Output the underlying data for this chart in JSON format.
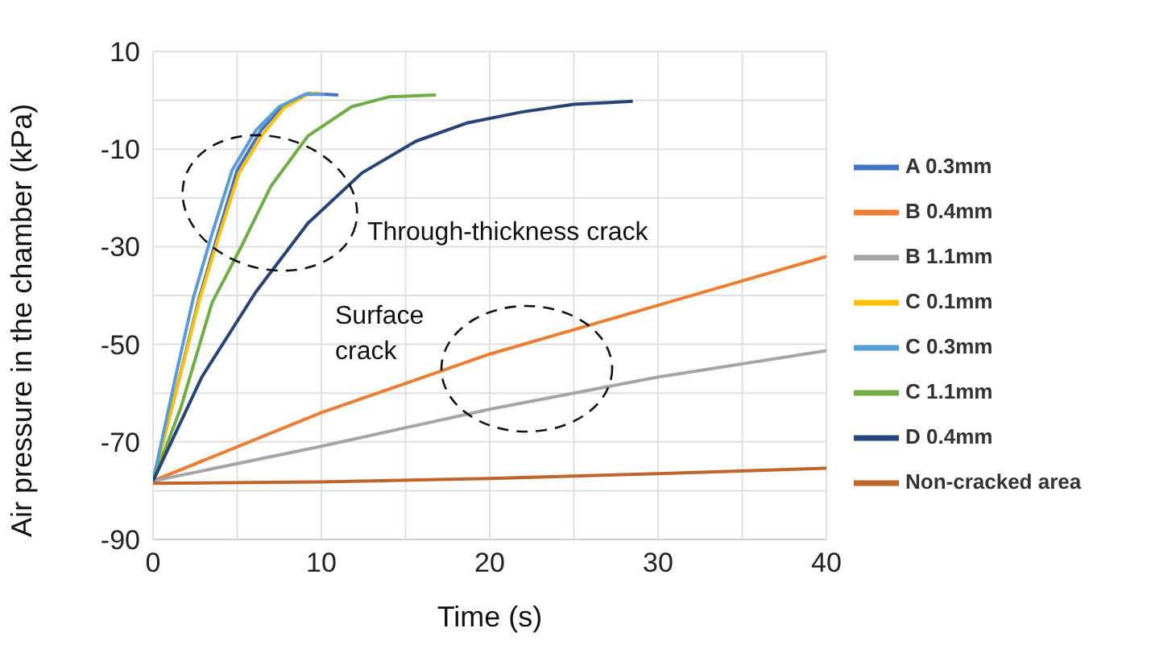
{
  "chart_data": {
    "type": "line",
    "xlabel": "Time (s)",
    "ylabel": "Air pressure in the chamber (kPa)",
    "xlim": [
      0,
      40
    ],
    "xticks": [
      0,
      10,
      20,
      30,
      40
    ],
    "ylim": [
      -90,
      10
    ],
    "yticks": [
      -90,
      -70,
      -50,
      -30,
      -10,
      10
    ],
    "grid": true,
    "legend": "right",
    "marker": "none",
    "line_style": "solid",
    "annotations": [
      "Through-thickness crack",
      "Surface crack"
    ],
    "series": [
      {
        "name": "A 0.3mm",
        "color": "#4472c4",
        "x": [
          0,
          1.65,
          2.75,
          3.86,
          5,
          6.4,
          7.7,
          9.2,
          11
        ],
        "values": [
          -78,
          -55.7,
          -40.4,
          -27.4,
          -14.3,
          -6.2,
          -1.3,
          1.4,
          1.1
        ]
      },
      {
        "name": "B 0.4mm",
        "color": "#ed7d31",
        "x": [
          0,
          10,
          20,
          30,
          40
        ],
        "values": [
          -78,
          -64,
          -52,
          -42,
          -32
        ]
      },
      {
        "name": "B 1.1mm",
        "color": "#a5a5a5",
        "x": [
          0,
          10,
          20,
          30,
          40
        ],
        "values": [
          -78,
          -70.9,
          -63.3,
          -56.7,
          -51.3
        ]
      },
      {
        "name": "C 0.1mm",
        "color": "#ffc000",
        "x": [
          0,
          1.65,
          2.75,
          3.9,
          5.1,
          6.5,
          7.8,
          9.2,
          9.8
        ],
        "values": [
          -78,
          -56,
          -41,
          -28,
          -15,
          -7,
          -1.5,
          1.3,
          1.5
        ]
      },
      {
        "name": "C 0.3mm",
        "color": "#5b9bd5",
        "x": [
          0,
          1.4,
          2.4,
          3.5,
          4.7,
          6.1,
          7.5,
          9.0,
          10.2
        ],
        "values": [
          -78,
          -55.7,
          -40.4,
          -27.4,
          -14.3,
          -6.2,
          -1.3,
          1.2,
          1.2
        ]
      },
      {
        "name": "C 1.1mm",
        "color": "#70ad47",
        "x": [
          0,
          1.65,
          3.5,
          5.3,
          7,
          9.2,
          11.8,
          14,
          16.8
        ],
        "values": [
          -78,
          -63,
          -41.5,
          -29.6,
          -17.6,
          -7.3,
          -1.3,
          0.7,
          1.1
        ]
      },
      {
        "name": "D 0.4mm",
        "color": "#264478",
        "x": [
          0,
          2.9,
          6.1,
          9.2,
          12.4,
          15.6,
          18.7,
          21.9,
          25,
          28.5
        ],
        "values": [
          -78,
          -56.7,
          -39.3,
          -25.2,
          -14.9,
          -8.4,
          -4.6,
          -2.4,
          -0.8,
          -0.2
        ]
      },
      {
        "name": "Non-cracked area",
        "color": "#c0642a",
        "x": [
          0,
          10,
          20,
          30,
          40
        ],
        "values": [
          -78.5,
          -78.2,
          -77.5,
          -76.5,
          -75.4
        ]
      }
    ]
  }
}
